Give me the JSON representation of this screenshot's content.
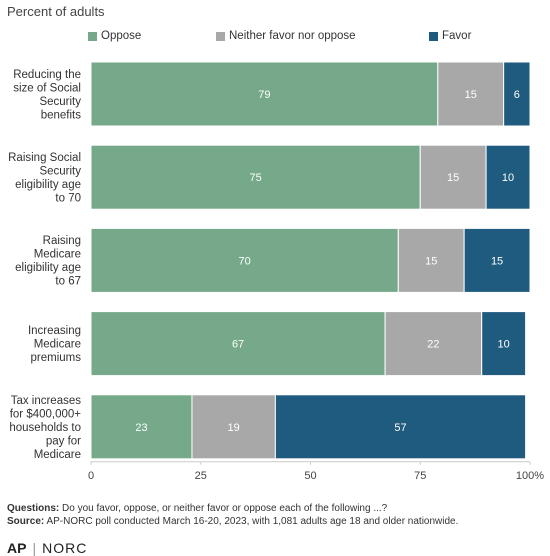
{
  "subtitle": "Percent of adults",
  "legend": [
    {
      "label": "Oppose",
      "color": "#76a98a"
    },
    {
      "label": "Neither favor nor oppose",
      "color": "#a8a8a8"
    },
    {
      "label": "Favor",
      "color": "#1f5a7f"
    }
  ],
  "chart_data": {
    "type": "bar",
    "orientation": "horizontal",
    "stacked": true,
    "categories": [
      [
        "Reducing the",
        "size of Social",
        "Security",
        "benefits"
      ],
      [
        "Raising Social",
        "Security",
        "eligibility age",
        "to 70"
      ],
      [
        "Raising",
        "Medicare",
        "eligibility age",
        "to 67"
      ],
      [
        "Increasing",
        "Medicare",
        "premiums"
      ],
      [
        "Tax increases",
        "for $400,000+",
        "households to",
        "pay for",
        "Medicare"
      ]
    ],
    "series": [
      {
        "name": "Oppose",
        "values": [
          79,
          75,
          70,
          67,
          23
        ],
        "color": "#76a98a"
      },
      {
        "name": "Neither favor nor oppose",
        "values": [
          15,
          15,
          15,
          22,
          19
        ],
        "color": "#a8a8a8"
      },
      {
        "name": "Favor",
        "values": [
          6,
          10,
          15,
          10,
          57
        ],
        "color": "#1f5a7f"
      }
    ],
    "xlim": [
      0,
      100
    ],
    "xticks": [
      "0",
      "25",
      "50",
      "75",
      "100%"
    ],
    "legend_position": "top",
    "grid": false
  },
  "footer": {
    "questions_label": "Questions:",
    "questions_text": "Do you favor, oppose, or neither favor or oppose each of the following ...?",
    "source_label": "Source:",
    "source_text": "AP-NORC poll conducted March 16-20, 2023, with 1,081 adults age 18 and older nationwide."
  },
  "logos": {
    "ap": "AP",
    "separator": "|",
    "norc": "NORC"
  }
}
